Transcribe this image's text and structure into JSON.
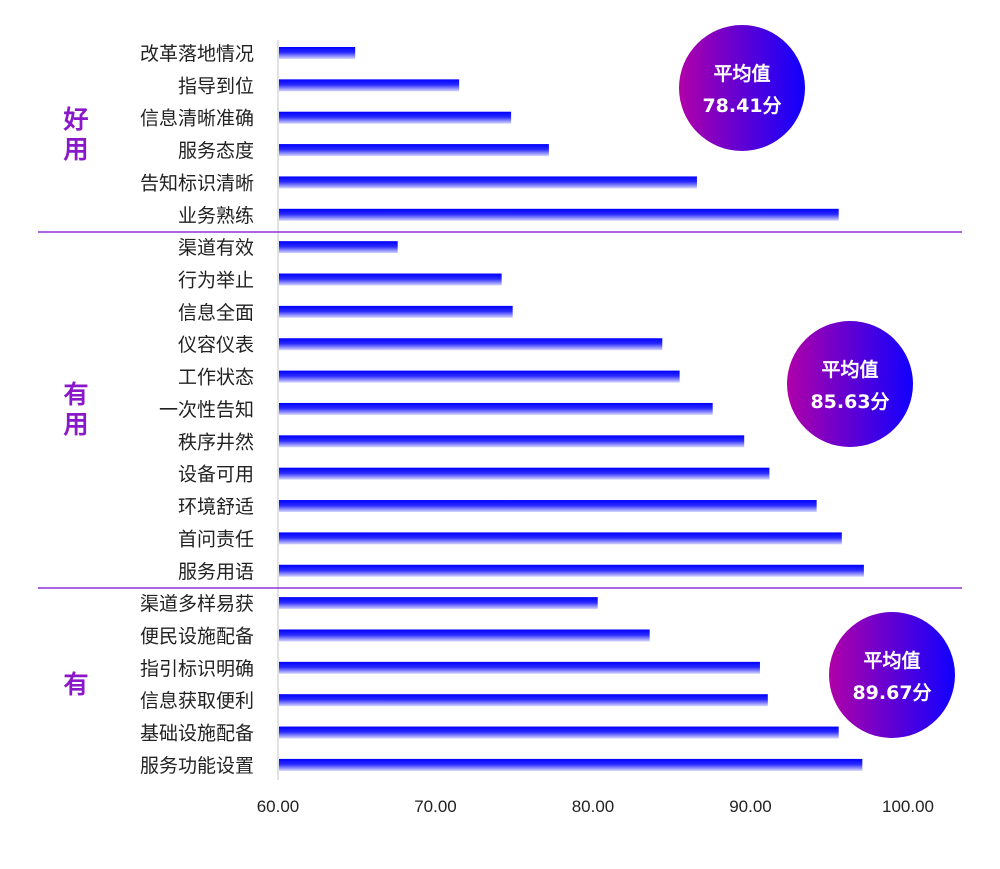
{
  "chart_data": {
    "type": "bar",
    "orientation": "horizontal",
    "xlim": [
      60,
      100
    ],
    "x_ticks": [
      "60.00",
      "70.00",
      "80.00",
      "90.00",
      "100.00"
    ],
    "grid": false,
    "bar_color": "#1010ff",
    "group_color": "#8a18c8",
    "groups": [
      {
        "label": "好用",
        "average_label": "平均值",
        "average_value": "78.41分",
        "categories": [
          "改革落地情况",
          "指导到位",
          "信息清晰准确",
          "服务态度",
          "告知标识清晰",
          "业务熟练"
        ],
        "values": [
          64.9,
          71.5,
          74.8,
          77.2,
          86.6,
          95.6
        ]
      },
      {
        "label": "有用",
        "average_label": "平均值",
        "average_value": "85.63分",
        "categories": [
          "渠道有效",
          "行为举止",
          "信息全面",
          "仪容仪表",
          "工作状态",
          "一次性告知",
          "秩序井然",
          "设备可用",
          "环境舒适",
          "首问责任",
          "服务用语"
        ],
        "values": [
          67.6,
          74.2,
          74.9,
          84.4,
          85.5,
          87.6,
          89.6,
          91.2,
          94.2,
          95.8,
          97.2
        ]
      },
      {
        "label": "有",
        "average_label": "平均值",
        "average_value": "89.67分",
        "categories": [
          "渠道多样易获",
          "便民设施配备",
          "指引标识明确",
          "信息获取便利",
          "基础设施配备",
          "服务功能设置"
        ],
        "values": [
          80.3,
          83.6,
          90.6,
          91.1,
          95.6,
          97.1
        ]
      }
    ]
  }
}
